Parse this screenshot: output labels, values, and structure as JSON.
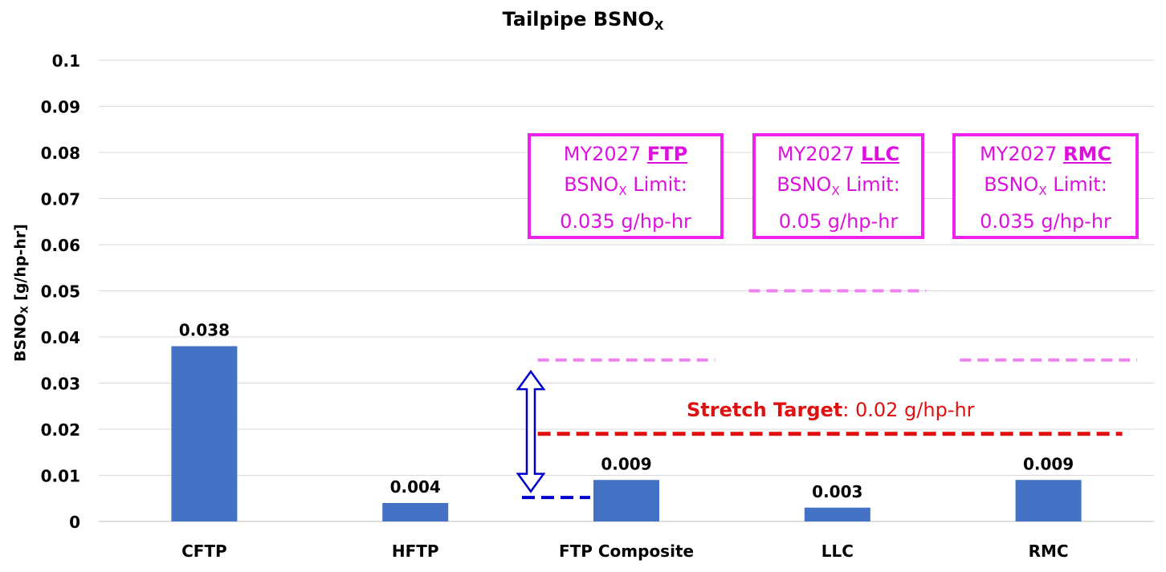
{
  "chart_data": {
    "type": "bar",
    "title": "Tailpipe BSNO",
    "title_sub": "X",
    "ylabel": "BSNO",
    "ylabel_sub": "X",
    "ylabel_suffix": " [g/hp-hr]",
    "categories": [
      "CFTP",
      "HFTP",
      "FTP Composite",
      "LLC",
      "RMC"
    ],
    "values": [
      0.038,
      0.004,
      0.009,
      0.003,
      0.009
    ],
    "data_labels": [
      "0.038",
      "0.004",
      "0.009",
      "0.003",
      "0.009"
    ],
    "ylim": [
      0,
      0.1
    ],
    "yticks": [
      "0",
      "0.01",
      "0.02",
      "0.03",
      "0.04",
      "0.05",
      "0.06",
      "0.07",
      "0.08",
      "0.09",
      "0.1"
    ],
    "grid": true,
    "bar_color": "#4472c4",
    "limits": [
      {
        "category_span": [
          2,
          2
        ],
        "value": 0.035,
        "color": "#ee82ee"
      },
      {
        "category_span": [
          3,
          3
        ],
        "value": 0.05,
        "color": "#ee82ee"
      },
      {
        "category_span": [
          4,
          4
        ],
        "value": 0.035,
        "color": "#ee82ee"
      }
    ],
    "stretch_target": {
      "category_span": [
        2,
        4
      ],
      "value": 0.019,
      "color": "#e01010"
    },
    "ftp_baseline": {
      "value": 0.0052,
      "color": "#0000cc"
    },
    "arrow": {
      "from": 0.0065,
      "to": 0.0325,
      "color": "#0000cc"
    },
    "annotations": {
      "ftp_box": {
        "line1_prefix": "MY2027 ",
        "line1_bold": "FTP",
        "line2_a": "BSNO",
        "line2_sub": "X",
        "line2_b": " Limit:",
        "line3": "0.035 g/hp-hr"
      },
      "llc_box": {
        "line1_prefix": "MY2027 ",
        "line1_bold": "LLC",
        "line2_a": "BSNO",
        "line2_sub": "X",
        "line2_b": " Limit:",
        "line3": "0.05 g/hp-hr"
      },
      "rmc_box": {
        "line1_prefix": "MY2027 ",
        "line1_bold": "RMC",
        "line2_a": "BSNO",
        "line2_sub": "X",
        "line2_b": " Limit:",
        "line3": "0.035 g/hp-hr"
      },
      "stretch_bold": "Stretch Target",
      "stretch_rest": ": 0.02 g/hp-hr",
      "box_color": "#ee22ee"
    }
  }
}
